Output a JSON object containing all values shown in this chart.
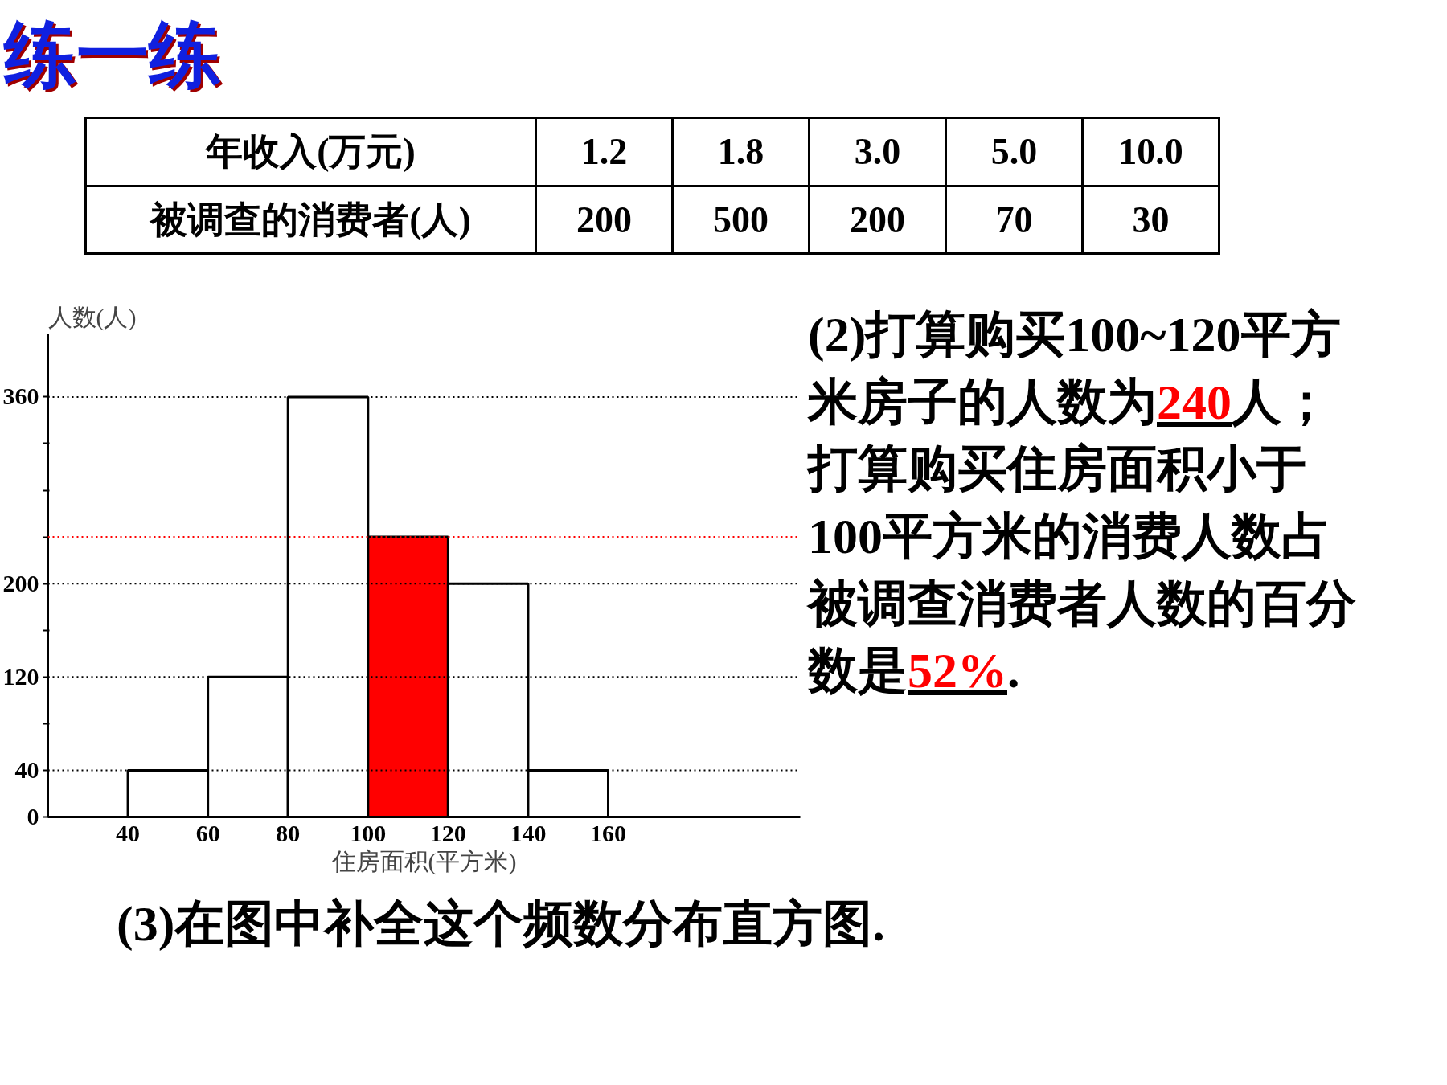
{
  "chart_data": {
    "type": "histogram",
    "title": "练一练",
    "bins": [
      40,
      60,
      80,
      100,
      120,
      140,
      160
    ],
    "values": [
      40,
      120,
      360,
      240,
      200,
      40
    ],
    "colors": [
      "#ffffff",
      "#ffffff",
      "#ffffff",
      "#ff0000",
      "#ffffff",
      "#ffffff"
    ],
    "xlim": [
      20,
      208
    ],
    "ylim": [
      0,
      414
    ],
    "xticks": [
      40,
      60,
      80,
      100,
      120,
      140,
      160
    ],
    "yticks": [
      0,
      40,
      {
        "value": 80,
        "label": null
      },
      120,
      {
        "value": 160,
        "label": null
      },
      200,
      {
        "value": 240,
        "label": null
      },
      {
        "value": 280,
        "label": null
      },
      {
        "value": 320,
        "label": null
      },
      360
    ],
    "xlabel": "住房面积(平方米)",
    "ylabel": "人数(人)",
    "grid": false,
    "ref_lines": [
      {
        "axis": "y",
        "value": 360,
        "color": "#000000",
        "line_style": "dotted"
      },
      {
        "axis": "y",
        "value": 240,
        "color": "#ff0000",
        "line_style": "dotted"
      },
      {
        "axis": "y",
        "value": 200,
        "color": "#000000",
        "line_style": "dotted"
      },
      {
        "axis": "y",
        "value": 120,
        "color": "#000000",
        "line_style": "dotted"
      },
      {
        "axis": "y",
        "value": 40,
        "color": "#000000",
        "line_style": "dotted"
      }
    ],
    "annotations": [
      "年收入(万元)",
      "1.2",
      "1.8",
      "3.0",
      "5.0",
      "10.0",
      "被调查的消费者(人)",
      "200",
      "500",
      "200",
      "70",
      "30",
      "(2)打算购买100~120平方米房子的人数为",
      "240",
      "人；打算购买住房面积小于100平方米的消费人数占被调查消费者人数的百分数是",
      "52%",
      ".",
      "(3)在图中补全这个频数分布直方图."
    ]
  }
}
